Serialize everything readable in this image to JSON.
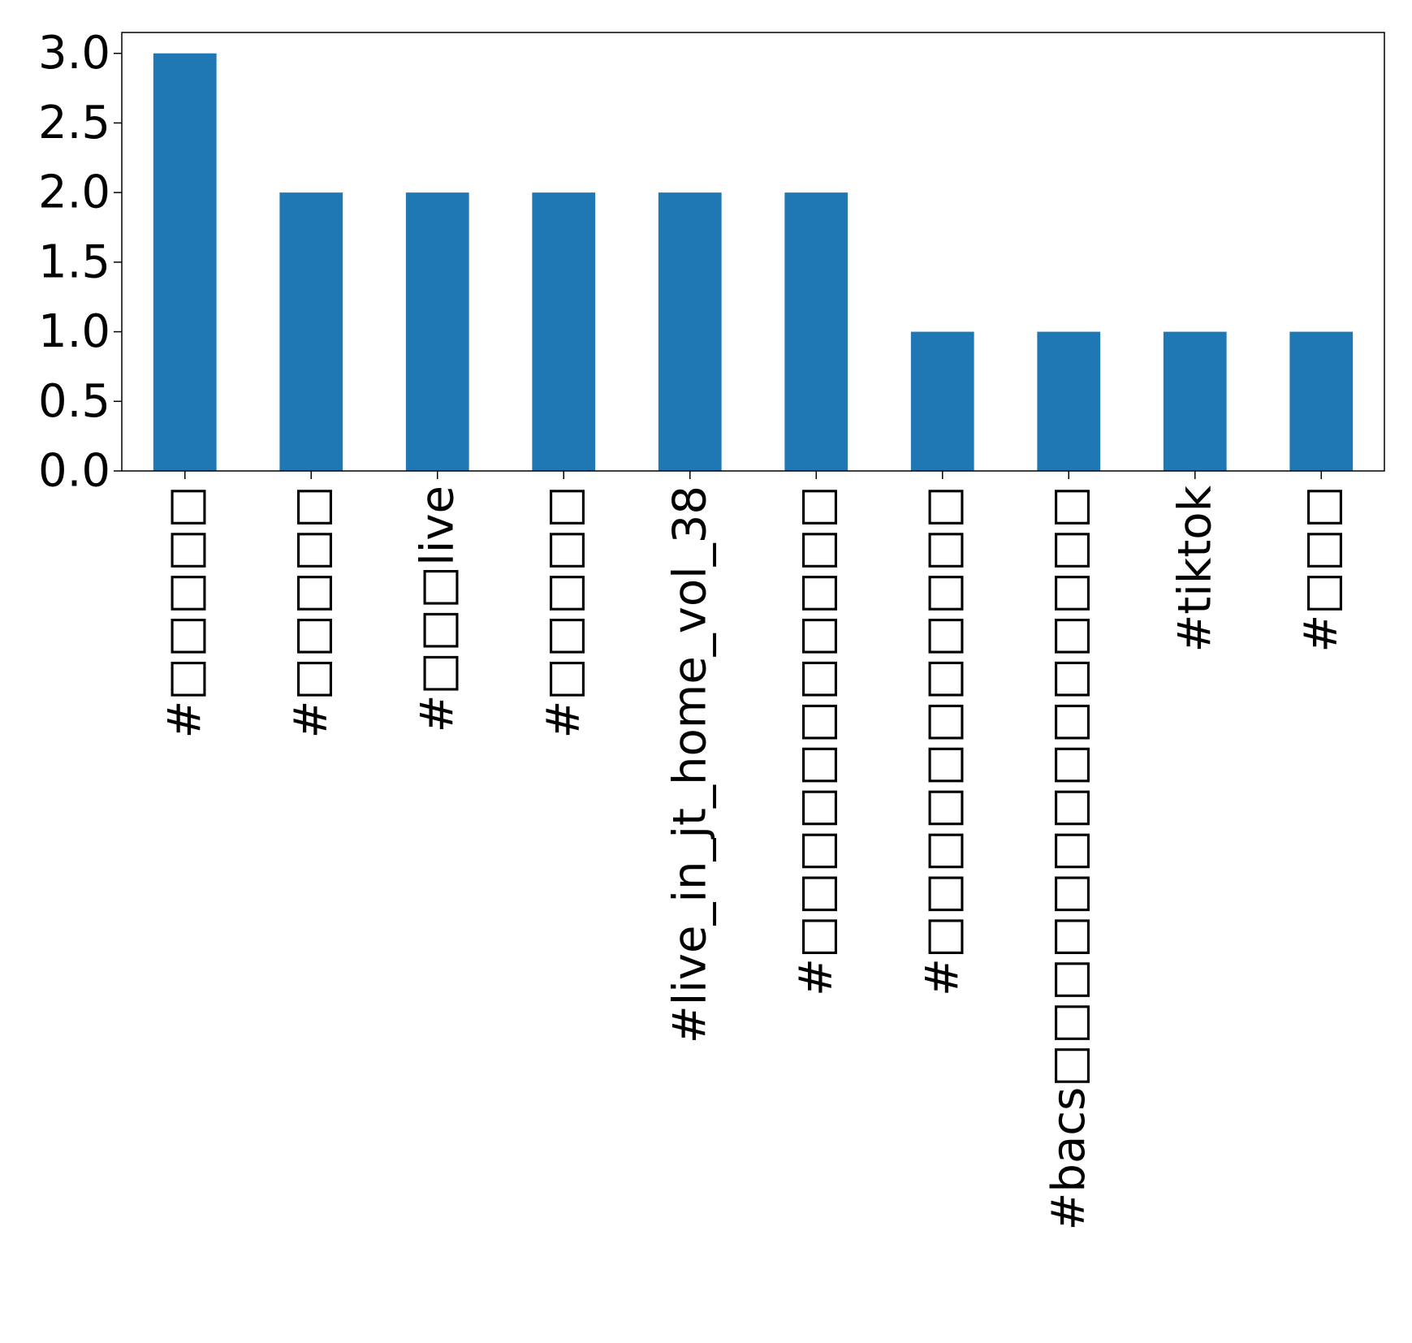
{
  "chart_data": {
    "type": "bar",
    "title": "",
    "xlabel": "",
    "ylabel": "",
    "categories": [
      "#□□□□□",
      "#□□□□□",
      "#□□□live",
      "#□□□□□",
      "#live_in_jt_home_vol_38",
      "#□□□□□□□□□□□",
      "#□□□□□□□□□□□",
      "#bacs□□□□□□□□□□□□□□",
      "#tiktok",
      "#□□□"
    ],
    "values": [
      3,
      2,
      2,
      2,
      2,
      2,
      1,
      1,
      1,
      1
    ],
    "ylim": [
      0,
      3.15
    ],
    "yticks": [
      0.0,
      0.5,
      1.0,
      1.5,
      2.0,
      2.5,
      3.0
    ],
    "ytick_labels": [
      "0.0",
      "0.5",
      "1.0",
      "1.5",
      "2.0",
      "2.5",
      "3.0"
    ],
    "bar_color": "#1f77b4",
    "grid": false,
    "legend": "none"
  }
}
